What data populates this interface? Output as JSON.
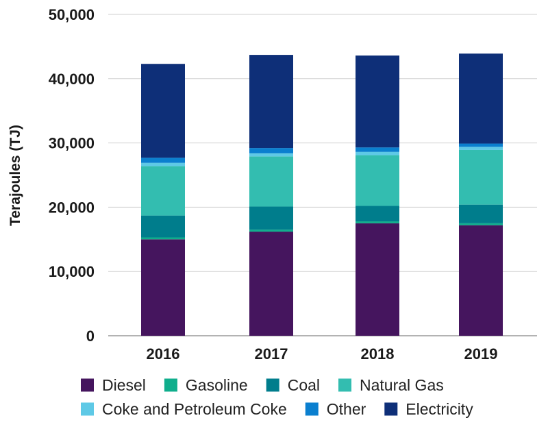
{
  "chart_data": {
    "type": "bar",
    "stacked": true,
    "title": "",
    "xlabel": "",
    "ylabel": "Terajoules (TJ)",
    "ylim": [
      0,
      50000
    ],
    "yticks": [
      0,
      10000,
      20000,
      30000,
      40000,
      50000
    ],
    "ytick_labels": [
      "0",
      "10,000",
      "20,000",
      "30,000",
      "40,000",
      "50,000"
    ],
    "grid": "horizontal",
    "legend_position": "bottom",
    "categories": [
      "2016",
      "2017",
      "2018",
      "2019"
    ],
    "series": [
      {
        "name": "Diesel",
        "color": "#45155e",
        "values": [
          15000,
          16200,
          17500,
          17200
        ]
      },
      {
        "name": "Gasoline",
        "color": "#0fae8c",
        "values": [
          300,
          300,
          300,
          300
        ]
      },
      {
        "name": "Coal",
        "color": "#007d8c",
        "values": [
          3400,
          3600,
          2400,
          2900
        ]
      },
      {
        "name": "Natural Gas",
        "color": "#33bdb0",
        "values": [
          7700,
          7800,
          7900,
          8500
        ]
      },
      {
        "name": "Coke and Petroleum Coke",
        "color": "#5ec9e6",
        "values": [
          500,
          500,
          500,
          500
        ]
      },
      {
        "name": "Other",
        "color": "#0a7fcf",
        "values": [
          800,
          800,
          700,
          500
        ]
      },
      {
        "name": "Electricity",
        "color": "#0e2f78",
        "values": [
          14600,
          14500,
          14300,
          14000
        ]
      }
    ]
  }
}
